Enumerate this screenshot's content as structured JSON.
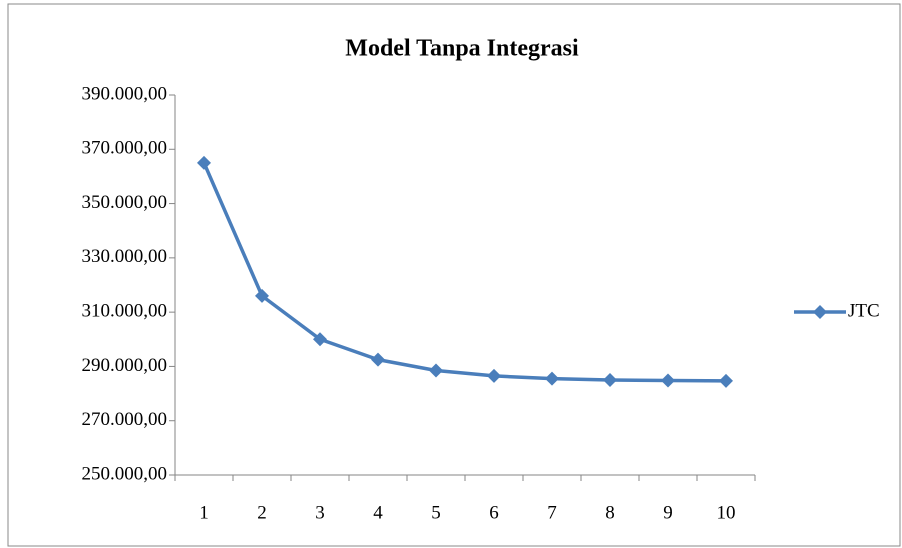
{
  "chart_data": {
    "type": "line",
    "title": "Model Tanpa Integrasi",
    "categories": [
      "1",
      "2",
      "3",
      "4",
      "5",
      "6",
      "7",
      "8",
      "9",
      "10"
    ],
    "series": [
      {
        "name": "JTC",
        "color": "#4a7ebb",
        "values": [
          365000,
          316000,
          300000,
          292500,
          288500,
          286500,
          285500,
          285000,
          284800,
          284700
        ]
      }
    ],
    "ylim": [
      250000,
      390000
    ],
    "yticks": [
      {
        "value": 250000,
        "label": "250.000,00"
      },
      {
        "value": 270000,
        "label": "270.000,00"
      },
      {
        "value": 290000,
        "label": "290.000,00"
      },
      {
        "value": 310000,
        "label": "310.000,00"
      },
      {
        "value": 330000,
        "label": "330.000,00"
      },
      {
        "value": 350000,
        "label": "350.000,00"
      },
      {
        "value": 370000,
        "label": "370.000,00"
      },
      {
        "value": 390000,
        "label": "390.000,00"
      }
    ],
    "grid": false,
    "legend": "right"
  }
}
